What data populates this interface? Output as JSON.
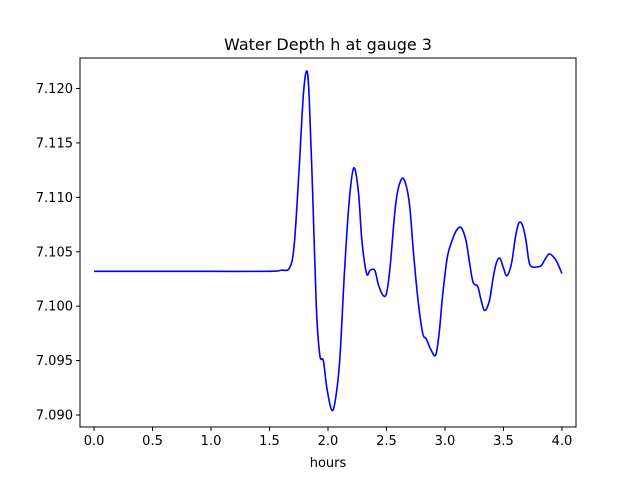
{
  "chart_data": {
    "type": "line",
    "title": "Water Depth h at gauge 3",
    "xlabel": "hours",
    "ylabel": "",
    "xlim": [
      -0.12,
      4.12
    ],
    "ylim": [
      7.0889,
      7.1228
    ],
    "grid": false,
    "legend": "none",
    "x_ticks": [
      0.0,
      0.5,
      1.0,
      1.5,
      2.0,
      2.5,
      3.0,
      3.5,
      4.0
    ],
    "x_tick_labels": [
      "0.0",
      "0.5",
      "1.0",
      "1.5",
      "2.0",
      "2.5",
      "3.0",
      "3.5",
      "4.0"
    ],
    "y_ticks": [
      7.09,
      7.095,
      7.1,
      7.105,
      7.11,
      7.115,
      7.12
    ],
    "y_tick_labels": [
      "7.090",
      "7.095",
      "7.100",
      "7.105",
      "7.110",
      "7.115",
      "7.120"
    ],
    "series": [
      {
        "color": "#0000ff",
        "x": [
          0.0,
          0.5,
          1.0,
          1.5,
          1.6,
          1.67,
          1.71,
          1.75,
          1.79,
          1.82,
          1.84,
          1.87,
          1.9,
          1.93,
          1.96,
          1.99,
          2.03,
          2.06,
          2.1,
          2.14,
          2.18,
          2.22,
          2.26,
          2.29,
          2.33,
          2.36,
          2.4,
          2.43,
          2.47,
          2.5,
          2.53,
          2.58,
          2.63,
          2.67,
          2.7,
          2.73,
          2.77,
          2.81,
          2.84,
          2.88,
          2.92,
          2.95,
          2.98,
          3.02,
          3.06,
          3.1,
          3.14,
          3.18,
          3.21,
          3.24,
          3.28,
          3.31,
          3.34,
          3.38,
          3.41,
          3.44,
          3.47,
          3.5,
          3.53,
          3.57,
          3.6,
          3.63,
          3.66,
          3.69,
          3.72,
          3.75,
          3.78,
          3.82,
          3.85,
          3.89,
          3.93,
          3.96,
          4.0
        ],
        "y": [
          7.1032,
          7.1032,
          7.1032,
          7.1032,
          7.1033,
          7.1035,
          7.1055,
          7.112,
          7.1195,
          7.1216,
          7.119,
          7.11,
          7.1,
          7.0955,
          7.095,
          7.0925,
          7.0905,
          7.0912,
          7.095,
          7.103,
          7.1095,
          7.1127,
          7.1105,
          7.106,
          7.103,
          7.1033,
          7.1033,
          7.102,
          7.101,
          7.1012,
          7.1035,
          7.1095,
          7.1117,
          7.111,
          7.109,
          7.105,
          7.1005,
          7.0975,
          7.097,
          7.096,
          7.0955,
          7.0975,
          7.101,
          7.1045,
          7.106,
          7.107,
          7.1072,
          7.106,
          7.104,
          7.1022,
          7.1018,
          7.1005,
          7.0996,
          7.1005,
          7.1025,
          7.104,
          7.1044,
          7.1035,
          7.1028,
          7.104,
          7.1062,
          7.1076,
          7.1075,
          7.1062,
          7.104,
          7.1036,
          7.1036,
          7.1037,
          7.1042,
          7.1048,
          7.1045,
          7.104,
          7.103
        ]
      }
    ]
  }
}
